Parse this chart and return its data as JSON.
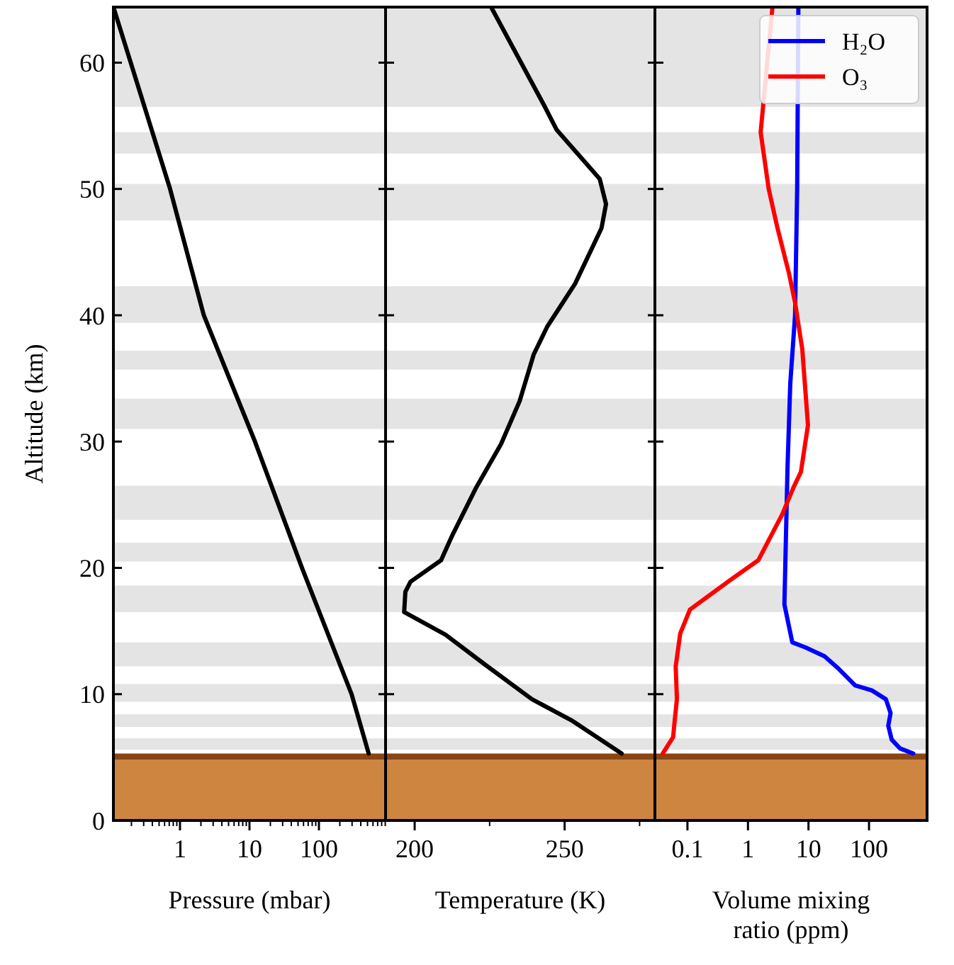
{
  "chart_data": [
    {
      "type": "line",
      "xlabel": "Pressure (mbar)",
      "ylabel": "Altitude (km)",
      "log": "x",
      "xlim": [
        0.11,
        910
      ],
      "xticks": [
        {
          "value": 0.2,
          "label": null
        },
        {
          "value": 0.3,
          "label": null
        },
        {
          "value": 0.4,
          "label": null
        },
        {
          "value": 0.5,
          "label": null
        },
        {
          "value": 0.6,
          "label": null
        },
        {
          "value": 0.7,
          "label": null
        },
        {
          "value": 0.8,
          "label": null
        },
        {
          "value": 0.9,
          "label": null
        },
        1,
        {
          "value": 2,
          "label": null
        },
        {
          "value": 3,
          "label": null
        },
        {
          "value": 4,
          "label": null
        },
        {
          "value": 5,
          "label": null
        },
        {
          "value": 6,
          "label": null
        },
        {
          "value": 7,
          "label": null
        },
        {
          "value": 8,
          "label": null
        },
        {
          "value": 9,
          "label": null
        },
        10,
        {
          "value": 20,
          "label": null
        },
        {
          "value": 30,
          "label": null
        },
        {
          "value": 40,
          "label": null
        },
        {
          "value": 50,
          "label": null
        },
        {
          "value": 60,
          "label": null
        },
        {
          "value": 70,
          "label": null
        },
        {
          "value": 80,
          "label": null
        },
        {
          "value": 90,
          "label": null
        },
        100,
        {
          "value": 200,
          "label": null
        },
        {
          "value": 300,
          "label": null
        },
        {
          "value": 400,
          "label": null
        },
        {
          "value": 500,
          "label": null
        },
        {
          "value": 600,
          "label": null
        },
        {
          "value": 700,
          "label": null
        },
        {
          "value": 800,
          "label": null
        },
        {
          "value": 900,
          "label": null
        }
      ],
      "ylim": [
        0,
        64.4
      ],
      "yticks": [
        0,
        10,
        20,
        30,
        40,
        50,
        60
      ],
      "grid": false,
      "legend": false,
      "series": [
        {
          "color": "#000000",
          "x": [
            0.11,
            0.72,
            2.2,
            12,
            57,
            295,
            520
          ],
          "values": [
            64.4,
            50,
            40,
            30,
            20,
            10,
            5.3
          ]
        }
      ],
      "bands": [
        {
          "axis": "y",
          "from": 56.5,
          "to": 64.4,
          "color": "#e4e4e4"
        },
        {
          "axis": "y",
          "from": 52.8,
          "to": 54.5,
          "color": "#e4e4e4"
        },
        {
          "axis": "y",
          "from": 47.5,
          "to": 50.4,
          "color": "#e4e4e4"
        },
        {
          "axis": "y",
          "from": 39.4,
          "to": 42.3,
          "color": "#e4e4e4"
        },
        {
          "axis": "y",
          "from": 35.7,
          "to": 37.2,
          "color": "#e4e4e4"
        },
        {
          "axis": "y",
          "from": 31.0,
          "to": 33.4,
          "color": "#e4e4e4"
        },
        {
          "axis": "y",
          "from": 23.8,
          "to": 26.5,
          "color": "#e4e4e4"
        },
        {
          "axis": "y",
          "from": 20.5,
          "to": 22.0,
          "color": "#e4e4e4"
        },
        {
          "axis": "y",
          "from": 16.5,
          "to": 18.6,
          "color": "#e4e4e4"
        },
        {
          "axis": "y",
          "from": 12.2,
          "to": 14.1,
          "color": "#e4e4e4"
        },
        {
          "axis": "y",
          "from": 9.4,
          "to": 10.8,
          "color": "#e4e4e4"
        },
        {
          "axis": "y",
          "from": 7.4,
          "to": 8.4,
          "color": "#e4e4e4"
        },
        {
          "axis": "y",
          "from": 5.6,
          "to": 6.5,
          "color": "#e4e4e4"
        },
        {
          "axis": "y",
          "from": 0,
          "to": 4.8,
          "color": "#cd853f"
        },
        {
          "axis": "y",
          "from": 4.8,
          "to": 5.3,
          "color": "#8b4513"
        }
      ]
    },
    {
      "type": "line",
      "xlabel": "Temperature (K)",
      "tick_labels": "x",
      "xlim": [
        190.3,
        280.1
      ],
      "xticks": [
        200,
        {
          "value": 225,
          "label": null
        },
        250,
        {
          "value": 275,
          "label": null
        }
      ],
      "ylim": [
        0,
        64.4
      ],
      "yticks": [
        0,
        10,
        20,
        30,
        40,
        50,
        60
      ],
      "grid": false,
      "legend": false,
      "series": [
        {
          "color": "#000000",
          "x": [
            225.5,
            243.2,
            247.3,
            261.7,
            263.8,
            262.3,
            253.5,
            244.2,
            239.7,
            235.0,
            228.8,
            220.6,
            212.4,
            208.8,
            198.6,
            196.9,
            196.5,
            210.3,
            223.7,
            239.1,
            252.5,
            269.0
          ],
          "values": [
            64.4,
            56.6,
            54.7,
            50.8,
            48.8,
            46.9,
            42.5,
            39.1,
            36.9,
            33.2,
            29.8,
            26.4,
            22.5,
            20.6,
            18.9,
            18.1,
            16.5,
            14.7,
            12.3,
            9.6,
            7.9,
            5.3
          ]
        }
      ],
      "bands": [
        {
          "axis": "y",
          "from": 56.5,
          "to": 64.4,
          "color": "#e4e4e4"
        },
        {
          "axis": "y",
          "from": 52.8,
          "to": 54.5,
          "color": "#e4e4e4"
        },
        {
          "axis": "y",
          "from": 47.5,
          "to": 50.4,
          "color": "#e4e4e4"
        },
        {
          "axis": "y",
          "from": 39.4,
          "to": 42.3,
          "color": "#e4e4e4"
        },
        {
          "axis": "y",
          "from": 35.7,
          "to": 37.2,
          "color": "#e4e4e4"
        },
        {
          "axis": "y",
          "from": 31.0,
          "to": 33.4,
          "color": "#e4e4e4"
        },
        {
          "axis": "y",
          "from": 23.8,
          "to": 26.5,
          "color": "#e4e4e4"
        },
        {
          "axis": "y",
          "from": 20.5,
          "to": 22.0,
          "color": "#e4e4e4"
        },
        {
          "axis": "y",
          "from": 16.5,
          "to": 18.6,
          "color": "#e4e4e4"
        },
        {
          "axis": "y",
          "from": 12.2,
          "to": 14.1,
          "color": "#e4e4e4"
        },
        {
          "axis": "y",
          "from": 9.4,
          "to": 10.8,
          "color": "#e4e4e4"
        },
        {
          "axis": "y",
          "from": 7.4,
          "to": 8.4,
          "color": "#e4e4e4"
        },
        {
          "axis": "y",
          "from": 5.6,
          "to": 6.5,
          "color": "#e4e4e4"
        },
        {
          "axis": "y",
          "from": 0,
          "to": 4.8,
          "color": "#cd853f"
        },
        {
          "axis": "y",
          "from": 4.8,
          "to": 5.3,
          "color": "#8b4513"
        }
      ]
    },
    {
      "type": "line",
      "xlabel": "Volume mixing ratio (ppm)",
      "tick_labels": "x",
      "log": "x",
      "xlim": [
        0.029,
        910
      ],
      "xticks": [
        0.1,
        1,
        10,
        100
      ],
      "ylim": [
        0,
        64.4
      ],
      "yticks": [
        0,
        10,
        20,
        30,
        40,
        50,
        60
      ],
      "grid": false,
      "legend": "top right",
      "series": [
        {
          "name": "H₂O",
          "color": "#0000ff",
          "x": [
            6.8,
            6.5,
            6.0,
            5.0,
            4.5,
            4.0,
            5.4,
            8.9,
            18.4,
            31.6,
            59,
            111,
            190,
            227,
            208,
            237,
            326,
            538
          ],
          "values": [
            64.4,
            50,
            40,
            34.6,
            27.9,
            17.1,
            14.1,
            13.7,
            13.0,
            12.0,
            10.7,
            10.3,
            9.6,
            8.5,
            7.5,
            6.4,
            5.7,
            5.3
          ]
        },
        {
          "name": "O₃",
          "color": "#ff0000",
          "x": [
            2.54,
            1.62,
            2.2,
            3.04,
            4.77,
            6.0,
            7.9,
            9.8,
            7.5,
            5.7,
            3.65,
            1.48,
            0.5,
            0.11,
            0.076,
            0.064,
            0.067,
            0.061,
            0.058,
            0.039
          ],
          "values": [
            64.4,
            54.5,
            50,
            47,
            43.3,
            41,
            37.3,
            31.3,
            27.6,
            26.4,
            24.2,
            20.6,
            19.0,
            16.7,
            14.8,
            12.2,
            9.6,
            7.7,
            6.6,
            5.3
          ]
        }
      ],
      "bands": [
        {
          "axis": "y",
          "from": 56.5,
          "to": 64.4,
          "color": "#e4e4e4"
        },
        {
          "axis": "y",
          "from": 52.8,
          "to": 54.5,
          "color": "#e4e4e4"
        },
        {
          "axis": "y",
          "from": 47.5,
          "to": 50.4,
          "color": "#e4e4e4"
        },
        {
          "axis": "y",
          "from": 39.4,
          "to": 42.3,
          "color": "#e4e4e4"
        },
        {
          "axis": "y",
          "from": 35.7,
          "to": 37.2,
          "color": "#e4e4e4"
        },
        {
          "axis": "y",
          "from": 31.0,
          "to": 33.4,
          "color": "#e4e4e4"
        },
        {
          "axis": "y",
          "from": 23.8,
          "to": 26.5,
          "color": "#e4e4e4"
        },
        {
          "axis": "y",
          "from": 20.5,
          "to": 22.0,
          "color": "#e4e4e4"
        },
        {
          "axis": "y",
          "from": 16.5,
          "to": 18.6,
          "color": "#e4e4e4"
        },
        {
          "axis": "y",
          "from": 12.2,
          "to": 14.1,
          "color": "#e4e4e4"
        },
        {
          "axis": "y",
          "from": 9.4,
          "to": 10.8,
          "color": "#e4e4e4"
        },
        {
          "axis": "y",
          "from": 7.4,
          "to": 8.4,
          "color": "#e4e4e4"
        },
        {
          "axis": "y",
          "from": 5.6,
          "to": 6.5,
          "color": "#e4e4e4"
        },
        {
          "axis": "y",
          "from": 0,
          "to": 4.8,
          "color": "#cd853f"
        },
        {
          "axis": "y",
          "from": 4.8,
          "to": 5.3,
          "color": "#8b4513"
        }
      ]
    }
  ]
}
